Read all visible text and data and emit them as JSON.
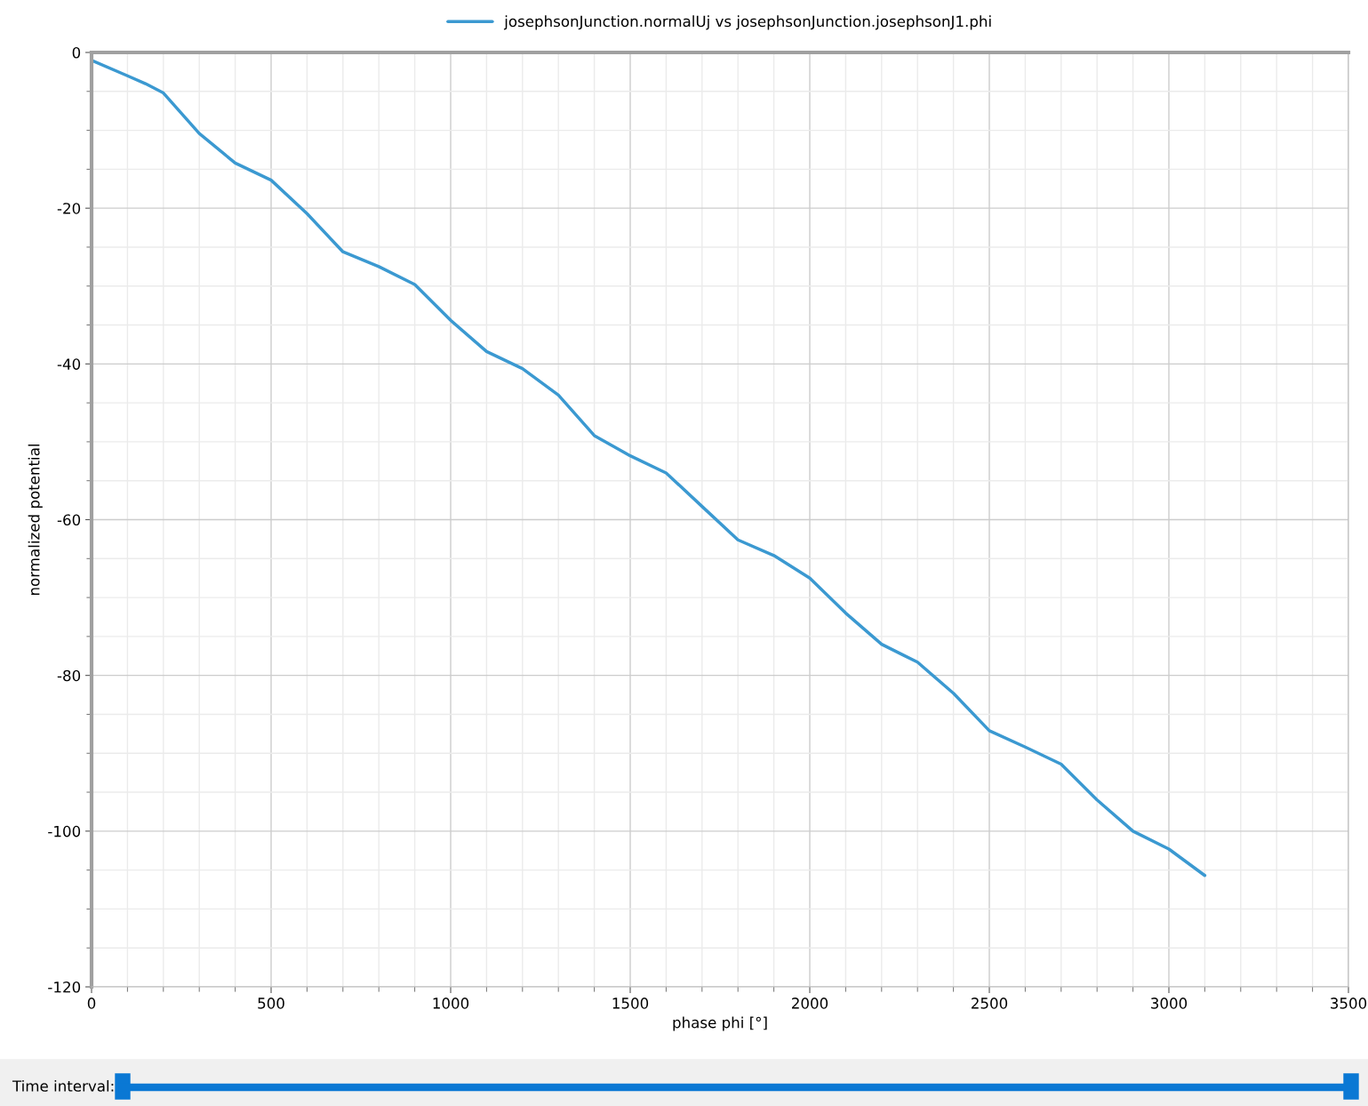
{
  "chart_data": {
    "type": "line",
    "xlabel": "phase phi [°]",
    "ylabel": "normalized potential",
    "xlim": [
      0,
      3500
    ],
    "ylim": [
      -120,
      0
    ],
    "xticks": [
      0,
      500,
      1000,
      1500,
      2000,
      2500,
      3000,
      3500
    ],
    "yticks": [
      -120,
      -100,
      -80,
      -60,
      -40,
      -20,
      0
    ],
    "grid": true,
    "legend": "top",
    "line_style": "solid",
    "marker": "none",
    "annotations": [
      "Time interval:"
    ],
    "series": [
      {
        "name": "josephsonJunction.normalUj vs josephsonJunction.josephsonJ1.phi",
        "color": "#3b99d1",
        "x": [
          0,
          100,
          150,
          200,
          300,
          400,
          500,
          600,
          700,
          800,
          900,
          1000,
          1100,
          1200,
          1300,
          1400,
          1500,
          1600,
          1700,
          1800,
          1900,
          2000,
          2100,
          2200,
          2300,
          2400,
          2500,
          2600,
          2700,
          2800,
          2900,
          3000,
          3100
        ],
        "values": [
          -1,
          -3,
          -4,
          -5.2,
          -10.4,
          -14.2,
          -16.4,
          -20.7,
          -25.6,
          -27.5,
          -29.8,
          -34.4,
          -38.4,
          -40.6,
          -44,
          -49.2,
          -51.8,
          -54,
          -58.3,
          -62.6,
          -64.6,
          -67.5,
          -72,
          -76,
          -78.3,
          -82.3,
          -87.1,
          -89.2,
          -91.4,
          -96,
          -100,
          -102.3,
          -105.7
        ]
      }
    ]
  }
}
